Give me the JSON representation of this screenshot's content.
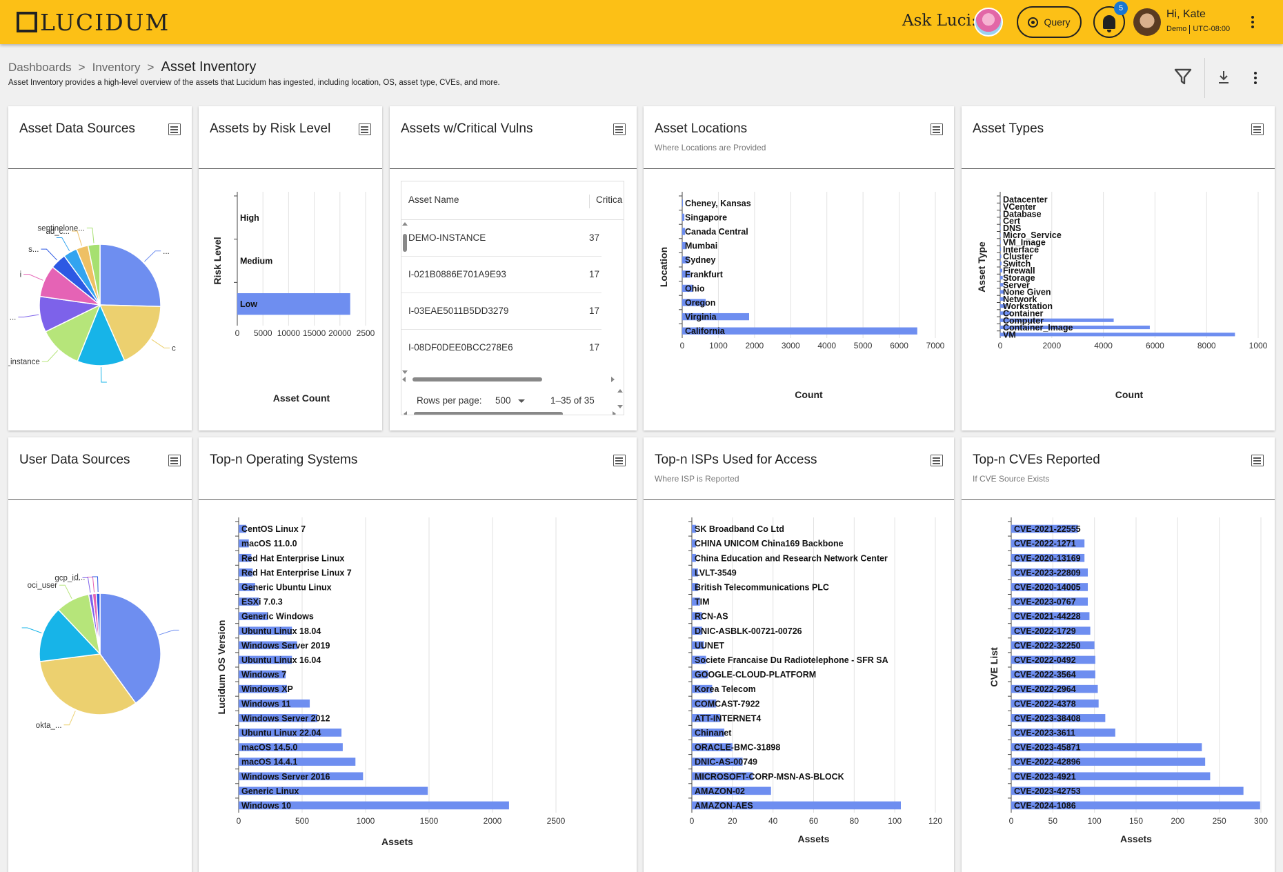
{
  "header": {
    "logo_text": "LUCIDUM",
    "ask_label": "Ask Luci:",
    "query_label": "Query",
    "notification_count": "5",
    "greeting": "Hi, Kate",
    "org": "Demo",
    "timezone": "UTC-08:00",
    "brand_color": "#fcc016"
  },
  "breadcrumb": {
    "items": [
      "Dashboards",
      "Inventory"
    ],
    "separator": ">",
    "current": "Asset Inventory"
  },
  "page": {
    "description": "Asset Inventory provides a high-level overview of the assets that Lucidum has ingested, including location, OS, asset type, CVEs, and more."
  },
  "cards": {
    "asset_data_sources": {
      "title": "Asset Data Sources"
    },
    "assets_by_risk": {
      "title": "Assets by Risk Level"
    },
    "critical_vulns": {
      "title": "Assets w/Critical Vulns"
    },
    "asset_locations": {
      "title": "Asset Locations",
      "subtitle": "Where Locations are Provided"
    },
    "asset_types": {
      "title": "Asset Types"
    },
    "user_data_sources": {
      "title": "User Data Sources"
    },
    "top_os": {
      "title": "Top-n Operating Systems"
    },
    "top_isps": {
      "title": "Top-n ISPs Used for Access",
      "subtitle": "Where ISP is Reported"
    },
    "top_cves": {
      "title": "Top-n CVEs Reported",
      "subtitle": "If CVE Source Exists"
    }
  },
  "vuln_table": {
    "columns": [
      "Asset Name",
      "Critica"
    ],
    "rows": [
      [
        "DEMO-INSTANCE",
        "37"
      ],
      [
        "I-021B0886E701A9E93",
        "17"
      ],
      [
        "I-03EAE5011B5DD3279",
        "17"
      ],
      [
        "I-08DF0DEE0BCC278E6",
        "17"
      ]
    ],
    "rows_per_page_label": "Rows per page:",
    "rows_per_page": "500",
    "range": "1–35 of 35"
  },
  "chart_data": [
    {
      "id": "asset_data_sources",
      "type": "pie",
      "slices": [
        {
          "label": "...",
          "value": 24,
          "color": "#6e8ef0"
        },
        {
          "label": "c",
          "value": 17,
          "color": "#ecd06f"
        },
        {
          "label": "",
          "value": 12,
          "color": "#17b4e8"
        },
        {
          "label": "oci_instance",
          "value": 11,
          "color": "#b6e57a"
        },
        {
          "label": "...",
          "value": 9,
          "color": "#7d62ea"
        },
        {
          "label": "i",
          "value": 8,
          "color": "#e563b5"
        },
        {
          "label": "s...",
          "value": 4,
          "color": "#2d59e3"
        },
        {
          "label": "",
          "value": 3.5,
          "color": "#33a4f0"
        },
        {
          "label": "ad_c...",
          "value": 3,
          "color": "#eec064"
        },
        {
          "label": "sentinelone...",
          "value": 3,
          "color": "#a6e070"
        }
      ]
    },
    {
      "id": "assets_by_risk",
      "type": "bar",
      "orientation": "horizontal",
      "categories": [
        "High",
        "Medium",
        "Low"
      ],
      "values": [
        0,
        0,
        22000
      ],
      "xlabel": "Asset Count",
      "ylabel": "Risk Level",
      "xticks": [
        "0",
        "5000",
        "10000",
        "15000",
        "20000",
        "2500"
      ],
      "xlim": [
        0,
        25000
      ]
    },
    {
      "id": "asset_locations",
      "type": "bar",
      "orientation": "horizontal",
      "categories": [
        "Cheney, Kansas",
        "Singapore",
        "Canada Central",
        "Mumbai",
        "Sydney",
        "Frankfurt",
        "Ohio",
        "Oregon",
        "Virginia",
        "California"
      ],
      "values": [
        20,
        60,
        80,
        120,
        180,
        220,
        300,
        650,
        1850,
        6500
      ],
      "xlabel": "Count",
      "ylabel": "Location",
      "xticks": [
        "0",
        "1000",
        "2000",
        "3000",
        "4000",
        "5000",
        "6000",
        "7000"
      ],
      "xlim": [
        0,
        7000
      ]
    },
    {
      "id": "asset_types",
      "type": "bar",
      "orientation": "horizontal",
      "categories": [
        "Datacenter",
        "VCenter",
        "Database",
        "Cert",
        "DNS",
        "Micro_Service",
        "VM_Image",
        "Interface",
        "Cluster",
        "Switch",
        "Firewall",
        "Storage",
        "Server",
        "None Given",
        "Network",
        "Workstation",
        "Container",
        "Computer",
        "Container_Image",
        "VM"
      ],
      "values": [
        5,
        5,
        10,
        10,
        15,
        15,
        20,
        30,
        40,
        50,
        80,
        100,
        120,
        150,
        180,
        250,
        420,
        4400,
        5800,
        9100
      ],
      "xlabel": "Count",
      "ylabel": "Asset Type",
      "xticks": [
        "0",
        "2000",
        "4000",
        "6000",
        "8000",
        "1000"
      ],
      "xlim": [
        0,
        10000
      ]
    },
    {
      "id": "user_data_sources",
      "type": "pie",
      "slices": [
        {
          "label": "",
          "value": 40,
          "color": "#6e8ef0"
        },
        {
          "label": "okta_...",
          "value": 33,
          "color": "#ecd06f"
        },
        {
          "label": "",
          "value": 15,
          "color": "#17b4e8"
        },
        {
          "label": "oci_user",
          "value": 9,
          "color": "#b6e57a"
        },
        {
          "label": "gcp_i...",
          "value": 1,
          "color": "#7d62ea"
        },
        {
          "label": "d...",
          "value": 1,
          "color": "#e563b5"
        },
        {
          "label": "",
          "value": 1,
          "color": "#2d59e3"
        }
      ]
    },
    {
      "id": "top_os",
      "type": "bar",
      "orientation": "horizontal",
      "categories": [
        "CentOS Linux 7",
        "macOS 11.0.0",
        "Red Hat Enterprise Linux",
        "Red Hat Enterprise Linux 7",
        "Generic Ubuntu Linux",
        "ESXi 7.0.3",
        "Generic Windows",
        "Ubuntu Linux 18.04",
        "Windows Server 2019",
        "Ubuntu Linux 16.04",
        "Windows 7",
        "Windows XP",
        "Windows 11",
        "Windows Server 2012",
        "Ubuntu Linux 22.04",
        "macOS 14.5.0",
        "macOS 14.4.1",
        "Windows Server 2016",
        "Generic Linux",
        "Windows 10"
      ],
      "values": [
        60,
        80,
        100,
        110,
        130,
        160,
        230,
        420,
        460,
        420,
        370,
        380,
        560,
        620,
        810,
        820,
        920,
        980,
        1490,
        2130
      ],
      "xlabel": "Assets",
      "ylabel": "Lucidum OS Version",
      "xticks": [
        "0",
        "500",
        "1000",
        "1500",
        "2000",
        "2500"
      ],
      "xlim": [
        0,
        2500
      ]
    },
    {
      "id": "top_isps",
      "type": "bar",
      "orientation": "horizontal",
      "categories": [
        "SK Broadband Co Ltd",
        "CHINA UNICOM China169 Backbone",
        "China Education and Research Network Center",
        "LVLT-3549",
        "British Telecommunications PLC",
        "TIM",
        "RCN-AS",
        "DNIC-ASBLK-00721-00726",
        "UUNET",
        "Societe Francaise Du Radiotelephone - SFR SA",
        "GOOGLE-CLOUD-PLATFORM",
        "Korea Telecom",
        "COMCAST-7922",
        "ATT-INTERNET4",
        "Chinanet",
        "ORACLE-BMC-31898",
        "DNIC-AS-00749",
        "MICROSOFT-CORP-MSN-AS-BLOCK",
        "AMAZON-02",
        "AMAZON-AES"
      ],
      "values": [
        2,
        2,
        2,
        3,
        3,
        4,
        5,
        5,
        6,
        7,
        8,
        10,
        12,
        14,
        16,
        20,
        25,
        30,
        39,
        103
      ],
      "xlabel": "Assets",
      "xticks": [
        "0",
        "20",
        "40",
        "60",
        "80",
        "100",
        "120"
      ],
      "xlim": [
        0,
        120
      ]
    },
    {
      "id": "top_cves",
      "type": "bar",
      "orientation": "horizontal",
      "categories": [
        "CVE-2021-22555",
        "CVE-2022-1271",
        "CVE-2020-13169",
        "CVE-2023-22809",
        "CVE-2020-14005",
        "CVE-2023-0767",
        "CVE-2021-44228",
        "CVE-2022-1729",
        "CVE-2022-32250",
        "CVE-2022-0492",
        "CVE-2022-3564",
        "CVE-2022-2964",
        "CVE-2022-4378",
        "CVE-2023-38408",
        "CVE-2023-3611",
        "CVE-2023-45871",
        "CVE-2022-42896",
        "CVE-2023-4921",
        "CVE-2023-42753",
        "CVE-2024-1086"
      ],
      "values": [
        80,
        88,
        88,
        92,
        92,
        92,
        94,
        95,
        100,
        101,
        101,
        104,
        105,
        113,
        125,
        229,
        233,
        239,
        279,
        299
      ],
      "xlabel": "Assets",
      "ylabel": "CVE List",
      "xticks": [
        "0",
        "50",
        "100",
        "150",
        "200",
        "250",
        "300"
      ],
      "xlim": [
        0,
        300
      ]
    }
  ]
}
